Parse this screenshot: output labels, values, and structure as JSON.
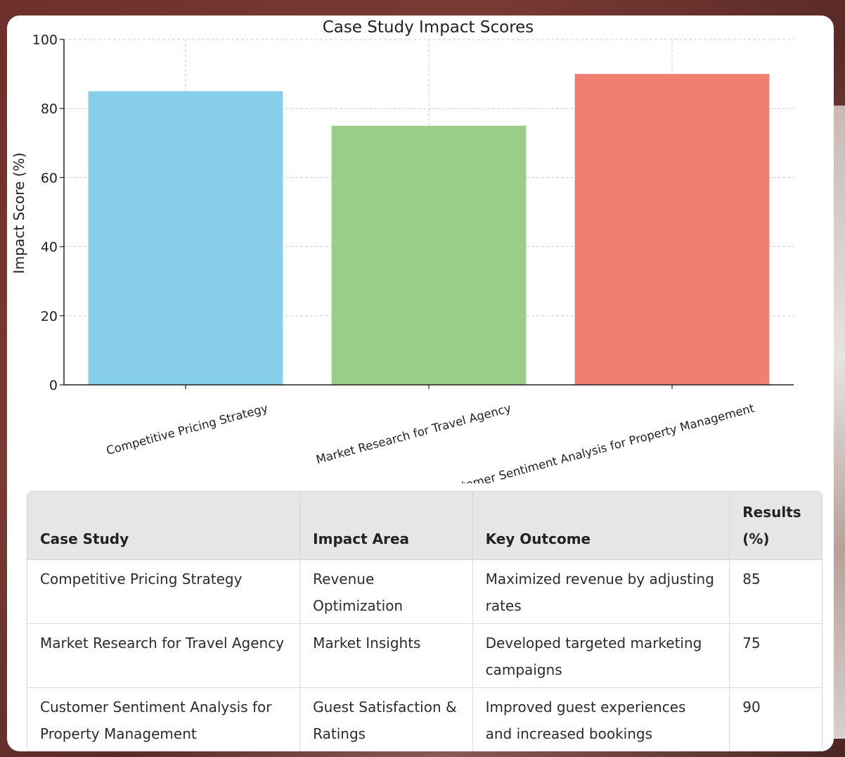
{
  "chart_data": {
    "type": "bar",
    "title": "Case Study Impact Scores",
    "xlabel": "",
    "ylabel": "Impact Score (%)",
    "ylim": [
      0,
      100
    ],
    "yticks": [
      0,
      20,
      40,
      60,
      80,
      100
    ],
    "grid": true,
    "categories": [
      "Competitive Pricing Strategy",
      "Market Research for Travel Agency",
      "Customer Sentiment Analysis for Property Management"
    ],
    "values": [
      85,
      75,
      90
    ],
    "colors": [
      "#87ceeb",
      "#9acd87",
      "#f07f72"
    ]
  },
  "table": {
    "headers": [
      "Case Study",
      "Impact Area",
      "Key Outcome",
      "Results (%)"
    ],
    "rows": [
      [
        "Competitive Pricing Strategy",
        "Revenue Optimization",
        "Maximized revenue by adjusting rates",
        "85"
      ],
      [
        "Market Research for Travel Agency",
        "Market Insights",
        "Developed targeted marketing campaigns",
        "75"
      ],
      [
        "Customer Sentiment Analysis for Property Management",
        "Guest Satisfaction & Ratings",
        "Improved guest experiences and increased bookings",
        "90"
      ]
    ]
  }
}
